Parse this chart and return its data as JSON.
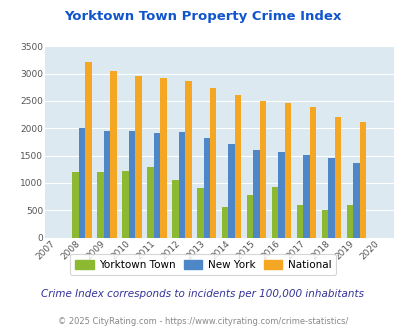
{
  "title": "Yorktown Town Property Crime Index",
  "years": [
    2007,
    2008,
    2009,
    2010,
    2011,
    2012,
    2013,
    2014,
    2015,
    2016,
    2017,
    2018,
    2019,
    2020
  ],
  "yorktown": [
    null,
    1200,
    1200,
    1220,
    1290,
    1060,
    900,
    560,
    780,
    930,
    590,
    500,
    590,
    null
  ],
  "new_york": [
    null,
    2000,
    1950,
    1950,
    1920,
    1930,
    1820,
    1710,
    1600,
    1560,
    1510,
    1450,
    1370,
    null
  ],
  "national": [
    null,
    3210,
    3040,
    2950,
    2910,
    2860,
    2730,
    2600,
    2500,
    2470,
    2380,
    2200,
    2110,
    null
  ],
  "color_yorktown": "#8db832",
  "color_new_york": "#4d87c7",
  "color_national": "#f5a623",
  "bg_color": "#dce9f0",
  "ylim": [
    0,
    3500
  ],
  "yticks": [
    0,
    500,
    1000,
    1500,
    2000,
    2500,
    3000,
    3500
  ],
  "legend_labels": [
    "Yorktown Town",
    "New York",
    "National"
  ],
  "subtitle": "Crime Index corresponds to incidents per 100,000 inhabitants",
  "footer": "© 2025 CityRating.com - https://www.cityrating.com/crime-statistics/",
  "title_color": "#1155cc",
  "subtitle_color": "#333399",
  "footer_color": "#888888"
}
